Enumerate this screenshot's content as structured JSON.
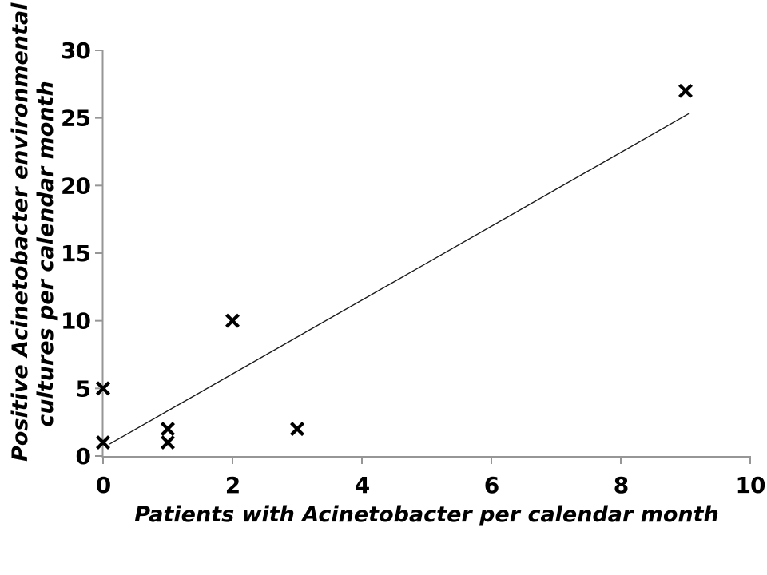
{
  "chart_data": {
    "type": "scatter",
    "title": "",
    "xlabel": "Patients with Acinetobacter per calendar month",
    "ylabel": "Positive Acinetobacter environmental cultures per calendar month",
    "ylabel_lines": [
      "Positive Acinetobacter environmental",
      "cultures per calendar month"
    ],
    "points": [
      {
        "x": 0,
        "y": 1
      },
      {
        "x": 0,
        "y": 5
      },
      {
        "x": 1,
        "y": 1
      },
      {
        "x": 1,
        "y": 2
      },
      {
        "x": 2,
        "y": 10
      },
      {
        "x": 3,
        "y": 2
      },
      {
        "x": 9,
        "y": 27
      }
    ],
    "xlim": [
      0,
      10
    ],
    "ylim": [
      0,
      30
    ],
    "x_ticks": [
      0,
      2,
      4,
      6,
      8,
      10
    ],
    "y_ticks": [
      0,
      5,
      10,
      15,
      20,
      25,
      30
    ],
    "grid": false,
    "legend": "none",
    "marker": {
      "shape": "x",
      "color": "#000000",
      "size": 15,
      "stroke_width": 4.2
    },
    "trendline": {
      "type": "linear",
      "slope": 2.73,
      "intercept": 0.61,
      "x_start": 0.1,
      "x_end": 9.05,
      "color": "#1a1a1a",
      "width": 1.4
    },
    "colors": {
      "axis": "#969696",
      "tick_label": "#000000",
      "title_text": "#000000",
      "background": "#ffffff"
    }
  }
}
